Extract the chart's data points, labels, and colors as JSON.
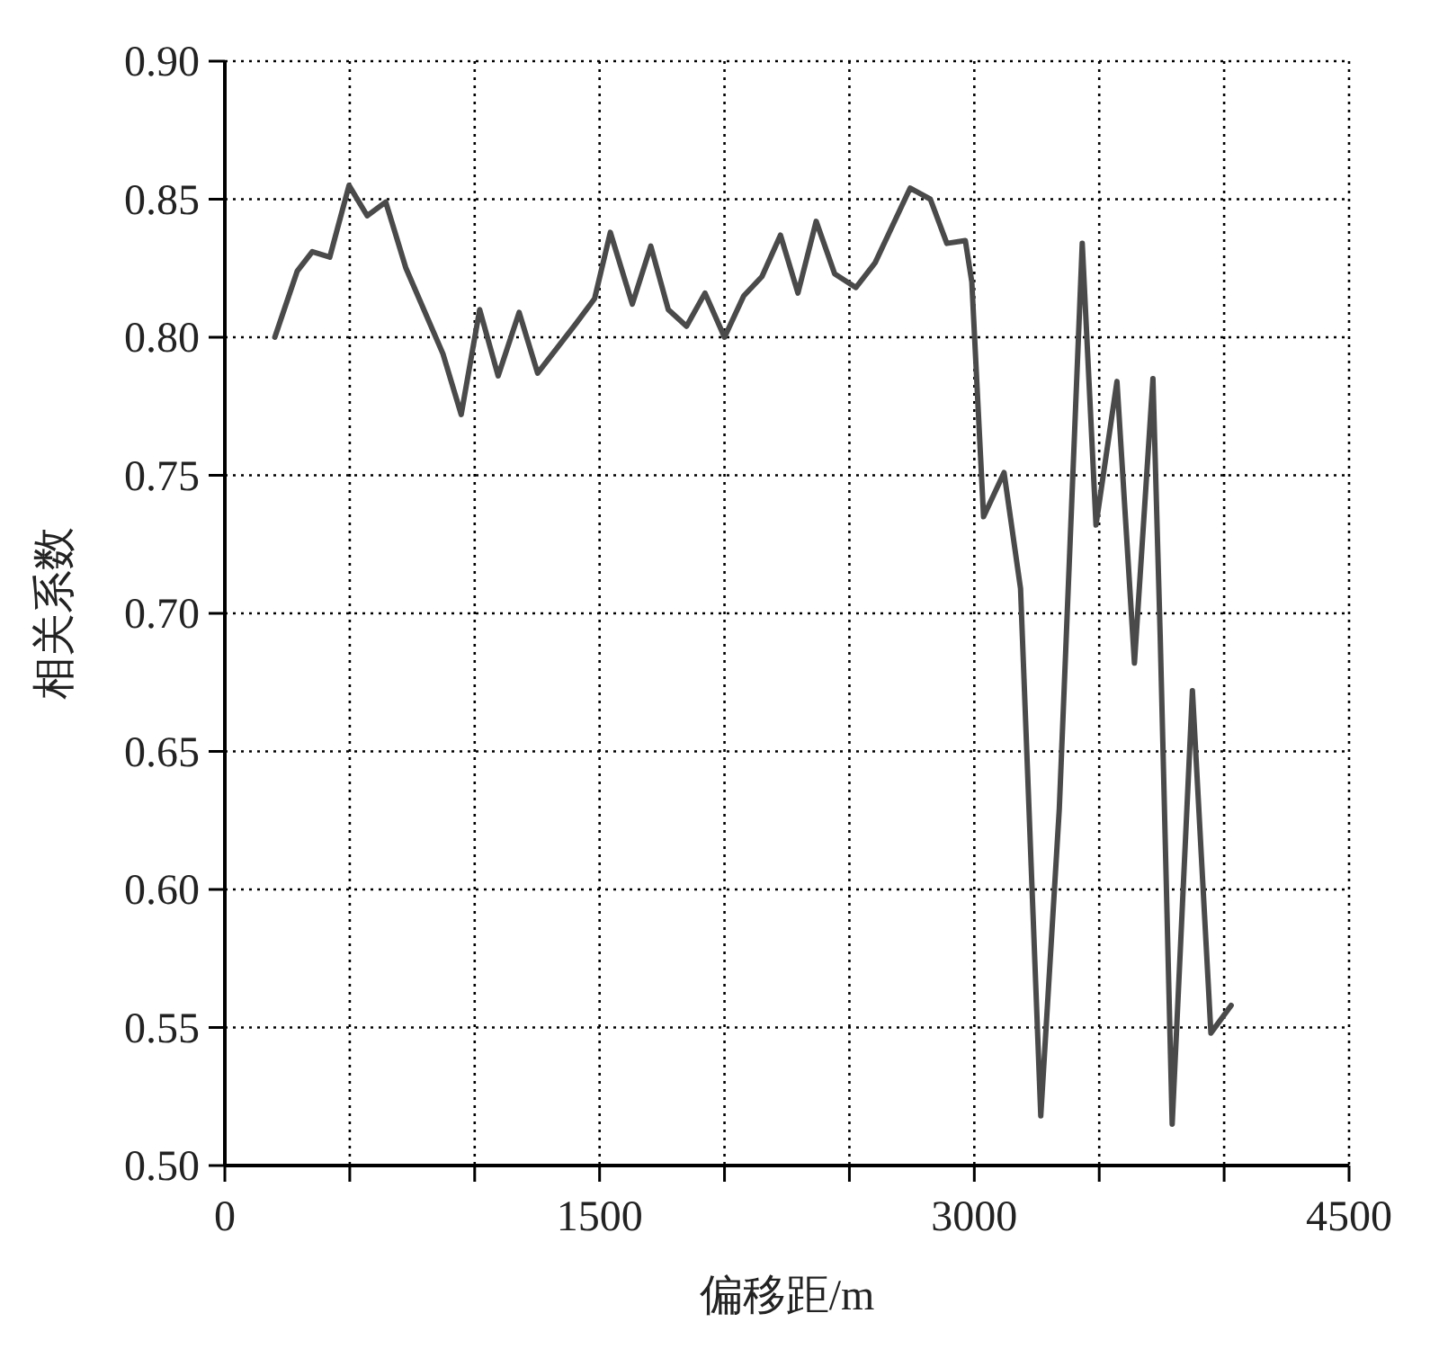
{
  "chart_data": {
    "type": "line",
    "xlabel": "偏移距/m",
    "ylabel": "相关系数",
    "xlim": [
      0,
      4500
    ],
    "ylim": [
      0.5,
      0.9
    ],
    "xticks": [
      0,
      {
        "value": 500,
        "label": null
      },
      {
        "value": 1000,
        "label": null
      },
      1500,
      {
        "value": 2000,
        "label": null
      },
      {
        "value": 2500,
        "label": null
      },
      3000,
      {
        "value": 3500,
        "label": null
      },
      {
        "value": 4000,
        "label": null
      },
      4500
    ],
    "yticks": [
      {
        "value": 0.5,
        "label": "0.50"
      },
      {
        "value": 0.55,
        "label": "0.55"
      },
      {
        "value": 0.6,
        "label": "0.60"
      },
      {
        "value": 0.65,
        "label": "0.65"
      },
      {
        "value": 0.7,
        "label": "0.70"
      },
      {
        "value": 0.75,
        "label": "0.75"
      },
      {
        "value": 0.8,
        "label": "0.80"
      },
      {
        "value": 0.85,
        "label": "0.85"
      },
      {
        "value": 0.9,
        "label": "0.90"
      }
    ],
    "grid": true,
    "line_style": "solid",
    "marker": "none",
    "series": [
      {
        "color": "#4a4a4a",
        "x": [
          200,
          290,
          350,
          420,
          497,
          570,
          644,
          725,
          873,
          946,
          1020,
          1094,
          1178,
          1252,
          1406,
          1480,
          1543,
          1631,
          1705,
          1775,
          1848,
          1922,
          2000,
          2077,
          2150,
          2224,
          2294,
          2367,
          2441,
          2526,
          2603,
          2743,
          2824,
          2890,
          2964,
          2990,
          3037,
          3119,
          3185,
          3266,
          3340,
          3432,
          3487,
          3571,
          3641,
          3715,
          3744,
          3792,
          3873,
          3947,
          4028
        ],
        "values": [
          0.8,
          0.824,
          0.831,
          0.829,
          0.855,
          0.844,
          0.849,
          0.825,
          0.794,
          0.772,
          0.81,
          0.786,
          0.809,
          0.787,
          0.805,
          0.814,
          0.838,
          0.812,
          0.833,
          0.81,
          0.804,
          0.816,
          0.8,
          0.815,
          0.822,
          0.837,
          0.816,
          0.842,
          0.823,
          0.818,
          0.827,
          0.854,
          0.85,
          0.834,
          0.835,
          0.82,
          0.735,
          0.751,
          0.709,
          0.518,
          0.629,
          0.834,
          0.732,
          0.784,
          0.682,
          0.785,
          0.692,
          0.515,
          0.672,
          0.548,
          0.558
        ]
      }
    ]
  }
}
